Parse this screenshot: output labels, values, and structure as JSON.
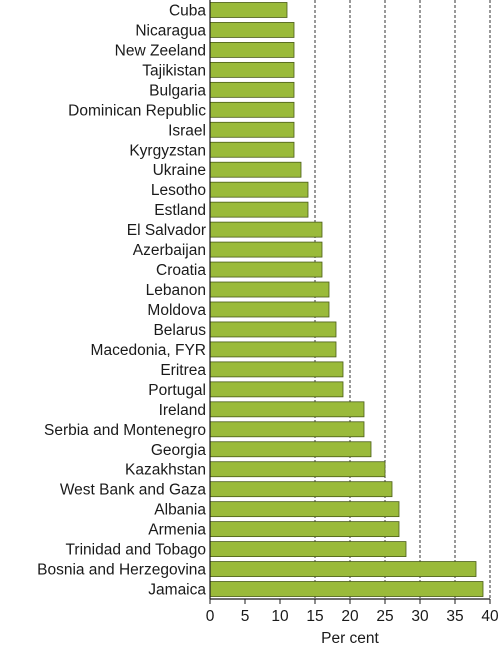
{
  "chart_data": {
    "type": "bar",
    "orientation": "horizontal",
    "categories": [
      "Cuba",
      "Nicaragua",
      "New Zeeland",
      "Tajikistan",
      "Bulgaria",
      "Dominican Republic",
      "Israel",
      "Kyrgyzstan",
      "Ukraine",
      "Lesotho",
      "Estland",
      "El Salvador",
      "Azerbaijan",
      "Croatia",
      "Lebanon",
      "Moldova",
      "Belarus",
      "Macedonia, FYR",
      "Eritrea",
      "Portugal",
      "Ireland",
      "Serbia and Montenegro",
      "Georgia",
      "Kazakhstan",
      "West Bank and Gaza",
      "Albania",
      "Armenia",
      "Trinidad and Tobago",
      "Bosnia and Herzegovina",
      "Jamaica"
    ],
    "values": [
      11,
      12,
      12,
      12,
      12,
      12,
      12,
      12,
      13,
      14,
      14,
      16,
      16,
      16,
      17,
      17,
      18,
      18,
      19,
      19,
      22,
      22,
      23,
      25,
      26,
      27,
      27,
      28,
      38,
      39
    ],
    "xlabel": "Per cent",
    "ylabel": "",
    "xlim": [
      0,
      40
    ],
    "xticks": [
      "0",
      "5",
      "10",
      "15",
      "20",
      "25",
      "30",
      "35",
      "40"
    ],
    "grid": "vertical dashed lines at 15, 20, 25, 30, 35, 40",
    "legend": "none",
    "colors": {
      "bar_fill": "#9aba3a",
      "bar_stroke": "#4a5c17",
      "axis": "#1a1a1a",
      "grid": "#333333"
    }
  }
}
